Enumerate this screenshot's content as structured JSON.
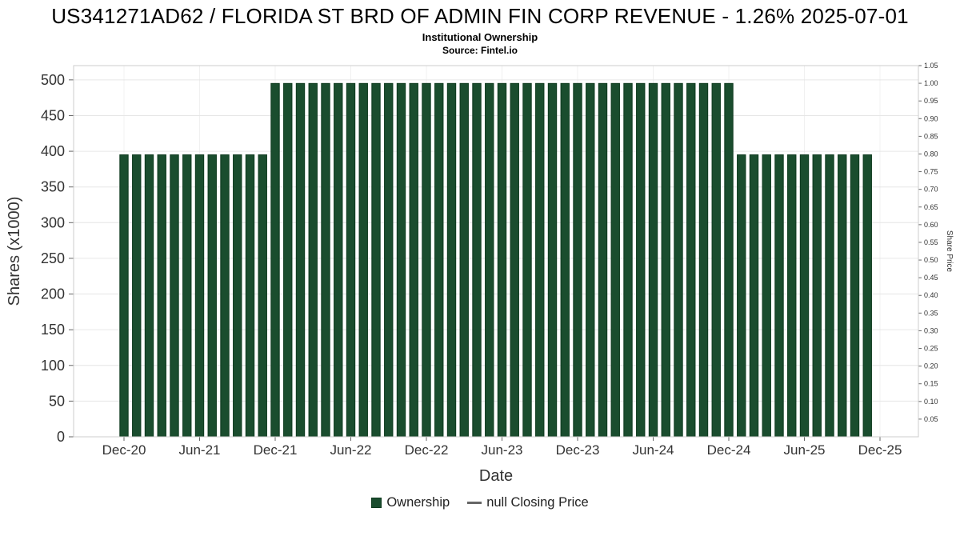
{
  "header": {
    "title": "US341271AD62 / FLORIDA ST BRD OF ADMIN FIN CORP REVENUE - 1.26% 2025-07-01",
    "subtitle": "Institutional Ownership",
    "source": "Source: Fintel.io"
  },
  "chart_data": {
    "type": "bar",
    "title": "Institutional Ownership",
    "xlabel": "Date",
    "ylabel_left": "Shares (x1000)",
    "ylabel_right": "Share Price",
    "bar_color": "#1a4d2e",
    "bar_edge_color": "#0e3a1e",
    "grid_color": "#e6e6e6",
    "axis_left_max": 520,
    "axis_right_max": 1.05,
    "ylim_left": [
      0,
      520
    ],
    "ylim_right": [
      0,
      1.05
    ],
    "x_ticks": [
      "Dec-20",
      "Jun-21",
      "Dec-21",
      "Jun-22",
      "Dec-22",
      "Jun-23",
      "Dec-23",
      "Jun-24",
      "Dec-24",
      "Jun-25",
      "Dec-25"
    ],
    "y_left_ticks": [
      0,
      50,
      100,
      150,
      200,
      250,
      300,
      350,
      400,
      450,
      500
    ],
    "y_right_ticks": [
      1.05,
      1.0,
      0.95,
      0.9,
      0.85,
      0.8,
      0.75,
      0.7,
      0.65,
      0.6,
      0.55,
      0.5,
      0.45,
      0.4,
      0.35,
      0.3,
      0.25,
      0.2,
      0.15,
      0.1,
      0.05
    ],
    "series": [
      {
        "name": "Ownership",
        "months": [
          "Dec-20",
          "Jan-21",
          "Feb-21",
          "Mar-21",
          "Apr-21",
          "May-21",
          "Jun-21",
          "Jul-21",
          "Aug-21",
          "Sep-21",
          "Oct-21",
          "Nov-21",
          "Dec-21",
          "Jan-22",
          "Feb-22",
          "Mar-22",
          "Apr-22",
          "May-22",
          "Jun-22",
          "Jul-22",
          "Aug-22",
          "Sep-22",
          "Oct-22",
          "Nov-22",
          "Dec-22",
          "Jan-23",
          "Feb-23",
          "Mar-23",
          "Apr-23",
          "May-23",
          "Jun-23",
          "Jul-23",
          "Aug-23",
          "Sep-23",
          "Oct-23",
          "Nov-23",
          "Dec-23",
          "Jan-24",
          "Feb-24",
          "Mar-24",
          "Apr-24",
          "May-24",
          "Jun-24",
          "Jul-24",
          "Aug-24",
          "Sep-24",
          "Oct-24",
          "Nov-24",
          "Dec-24",
          "Jan-25",
          "Feb-25",
          "Mar-25",
          "Apr-25",
          "May-25",
          "Jun-25",
          "Jul-25",
          "Aug-25",
          "Sep-25",
          "Oct-25",
          "Nov-25"
        ],
        "values": [
          395,
          395,
          395,
          395,
          395,
          395,
          395,
          395,
          395,
          395,
          395,
          395,
          495,
          495,
          495,
          495,
          495,
          495,
          495,
          495,
          495,
          495,
          495,
          495,
          495,
          495,
          495,
          495,
          495,
          495,
          495,
          495,
          495,
          495,
          495,
          495,
          495,
          495,
          495,
          495,
          495,
          495,
          495,
          495,
          495,
          495,
          495,
          495,
          495,
          395,
          395,
          395,
          395,
          395,
          395,
          395,
          395,
          395,
          395,
          395
        ]
      }
    ],
    "legend": [
      {
        "label": "Ownership",
        "marker": "square",
        "color": "#1a4d2e"
      },
      {
        "label": "null Closing Price",
        "marker": "line",
        "color": "#666666"
      }
    ]
  }
}
